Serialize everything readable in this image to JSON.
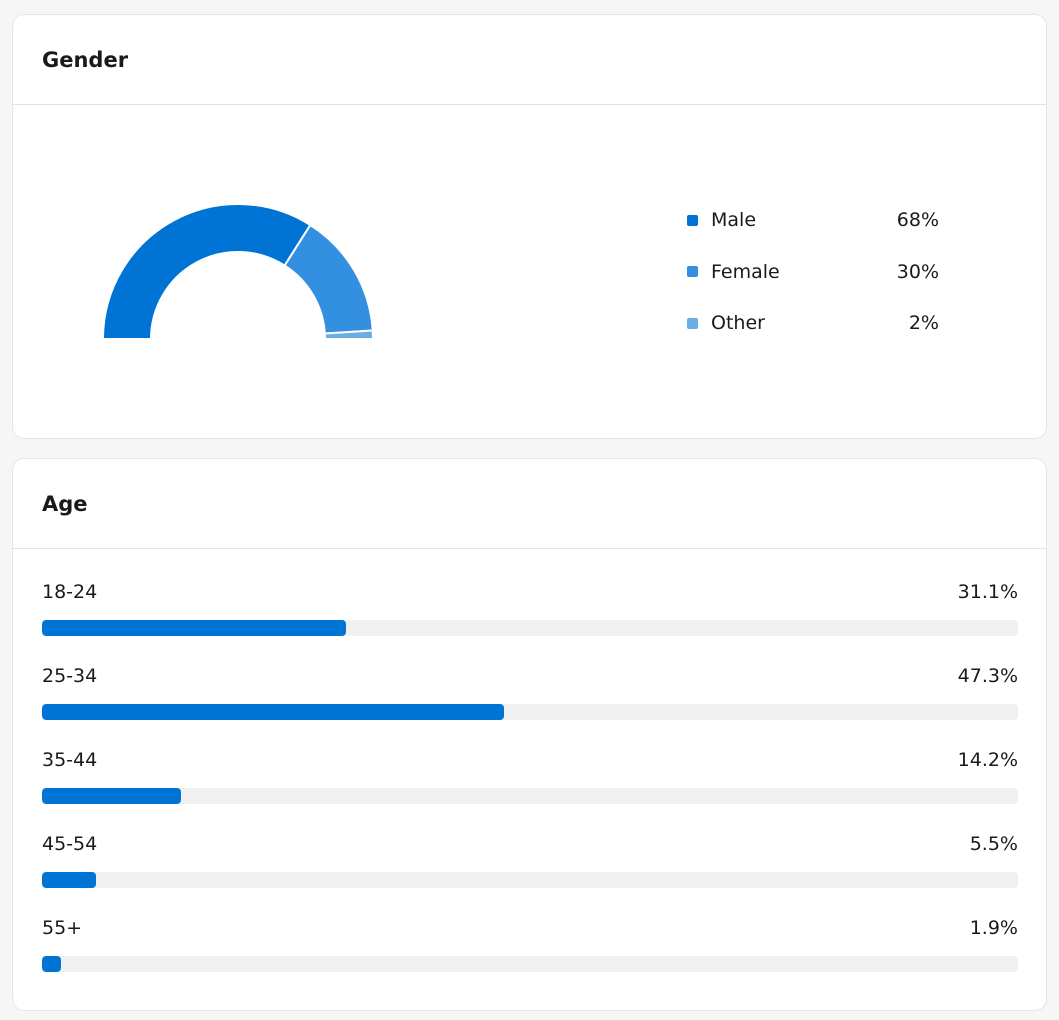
{
  "gender": {
    "title": "Gender",
    "items": [
      {
        "label": "Male",
        "value_text": "68%",
        "value": 68,
        "color": "#0074d4"
      },
      {
        "label": "Female",
        "value_text": "30%",
        "value": 30,
        "color": "#3390e0"
      },
      {
        "label": "Other",
        "value_text": "2%",
        "value": 2,
        "color": "#6aaee6"
      }
    ]
  },
  "age": {
    "title": "Age",
    "items": [
      {
        "label": "18-24",
        "value_text": "31.1%",
        "value": 31.1
      },
      {
        "label": "25-34",
        "value_text": "47.3%",
        "value": 47.3
      },
      {
        "label": "35-44",
        "value_text": "14.2%",
        "value": 14.2
      },
      {
        "label": "45-54",
        "value_text": "5.5%",
        "value": 5.5
      },
      {
        "label": "55+",
        "value_text": "1.9%",
        "value": 1.9
      }
    ],
    "bar_color": "#0074d4",
    "track_color": "#f0f0f0"
  },
  "chart_data": [
    {
      "type": "pie",
      "title": "Gender",
      "categories": [
        "Male",
        "Female",
        "Other"
      ],
      "values": [
        68,
        30,
        2
      ]
    },
    {
      "type": "bar",
      "title": "Age",
      "categories": [
        "18-24",
        "25-34",
        "35-44",
        "45-54",
        "55+"
      ],
      "values": [
        31.1,
        47.3,
        14.2,
        5.5,
        1.9
      ]
    }
  ]
}
